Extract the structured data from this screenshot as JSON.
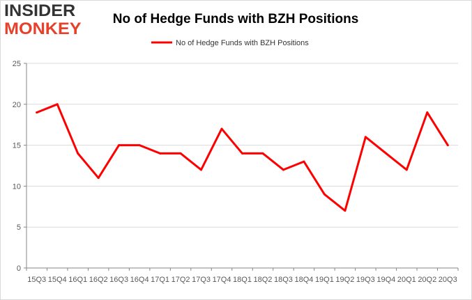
{
  "logo": {
    "line1": "INSIDER",
    "line2": "MONKEY"
  },
  "chart_data": {
    "type": "line",
    "title": "No of Hedge Funds with BZH Positions",
    "xlabel": "",
    "ylabel": "",
    "ylim": [
      0,
      25
    ],
    "yticks": [
      0,
      5,
      10,
      15,
      20,
      25
    ],
    "grid": true,
    "legend": "top-center",
    "categories": [
      "2015Q3",
      "2015Q4",
      "2016Q1",
      "2016Q2",
      "2016Q3",
      "2016Q4",
      "2017Q1",
      "2017Q2",
      "2017Q3",
      "2017Q4",
      "2018Q1",
      "2018Q2",
      "2018Q3",
      "2018Q4",
      "2019Q1",
      "2019Q2",
      "2019Q3",
      "2019Q4",
      "2020Q1",
      "2020Q2",
      "2020Q3"
    ],
    "tick_labels": [
      "15Q3",
      "15Q4",
      "16Q1",
      "16Q2",
      "16Q3",
      "16Q4",
      "17Q1",
      "17Q2",
      "17Q3",
      "17Q4",
      "18Q1",
      "18Q2",
      "18Q3",
      "18Q4",
      "19Q1",
      "19Q2",
      "19Q3",
      "19Q4",
      "20Q1",
      "20Q2",
      "20Q3"
    ],
    "series": [
      {
        "name": "No of Hedge Funds with BZH Positions",
        "color": "#ff0000",
        "values": [
          19,
          20,
          14,
          11,
          15,
          15,
          14,
          14,
          12,
          17,
          14,
          14,
          12,
          13,
          9,
          7,
          16,
          14,
          12,
          19,
          15
        ]
      }
    ]
  }
}
